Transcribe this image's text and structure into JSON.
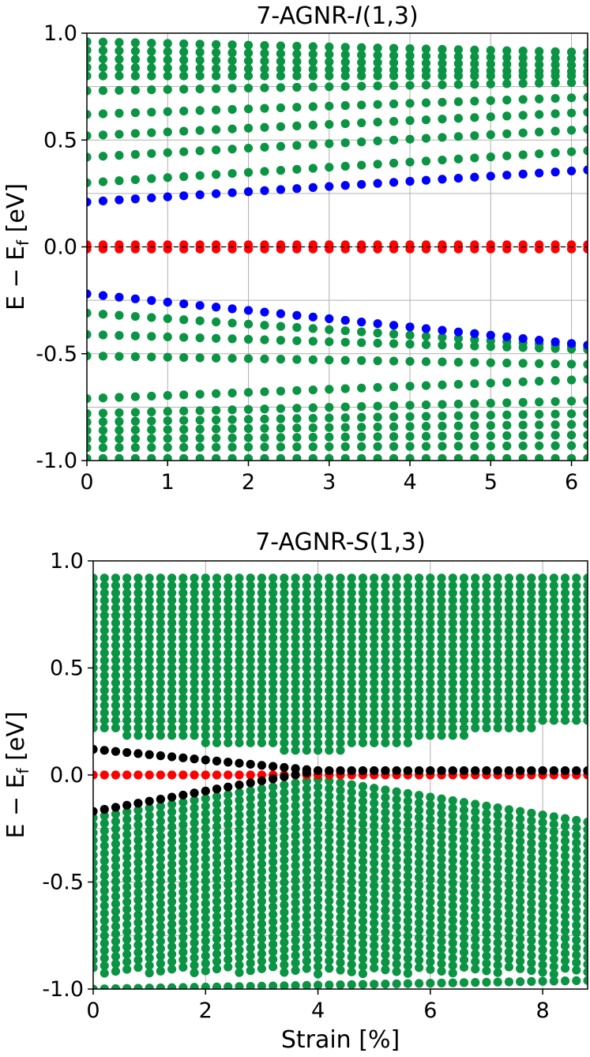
{
  "chart_data": [
    {
      "type": "scatter",
      "title": "7-AGNR-I(1,3)",
      "title_parts": {
        "prefix": "7-AGNR-",
        "italic": "I",
        "suffix": "(1,3)"
      },
      "ylabel": "E − E_f [eV]",
      "ylabel_parts": {
        "main": "E − E",
        "sub": "f",
        "unit": " [eV]"
      },
      "xlabel": "",
      "xlim": [
        0,
        6.2
      ],
      "ylim": [
        -1.0,
        1.0
      ],
      "xticks": [
        0,
        1,
        2,
        3,
        4,
        5,
        6
      ],
      "xtick_labels": [
        "0",
        "1",
        "2",
        "3",
        "4",
        "5",
        "6"
      ],
      "yticks": [
        -1.0,
        -0.5,
        0.0,
        0.5,
        1.0
      ],
      "ytick_labels": [
        "-1.0",
        "-0.5",
        "0.0",
        "0.5",
        "1.0"
      ],
      "grid": true,
      "zero_line": true,
      "strain_points": [
        0,
        0.2,
        0.4,
        0.6,
        0.8,
        1.0,
        1.2,
        1.4,
        1.6,
        1.8,
        2.0,
        2.2,
        2.4,
        2.6,
        2.8,
        3.0,
        3.2,
        3.4,
        3.6,
        3.8,
        4.0,
        4.2,
        4.4,
        4.6,
        4.8,
        5.0,
        5.2,
        5.4,
        5.6,
        5.8,
        6.0,
        6.2
      ],
      "series": [
        {
          "color": "#0b9444",
          "kind": "bulk",
          "bands": [
            {
              "start": -0.99,
              "end": -0.99
            },
            {
              "start": -0.94,
              "end": -0.93
            },
            {
              "start": -0.9,
              "end": -0.88
            },
            {
              "start": -0.86,
              "end": -0.83
            },
            {
              "start": -0.82,
              "end": -0.78
            },
            {
              "start": -0.78,
              "end": -0.72
            },
            {
              "start": -0.71,
              "end": -0.62
            },
            {
              "start": -0.51,
              "end": -0.55
            },
            {
              "start": -0.41,
              "end": -0.48
            },
            {
              "start": -0.31,
              "end": -0.47
            },
            {
              "start": 0.3,
              "end": 0.45
            },
            {
              "start": 0.42,
              "end": 0.55
            },
            {
              "start": 0.52,
              "end": 0.63
            },
            {
              "start": 0.62,
              "end": 0.7
            },
            {
              "start": 0.73,
              "end": 0.77
            },
            {
              "start": 0.8,
              "end": 0.8
            },
            {
              "start": 0.84,
              "end": 0.82
            },
            {
              "start": 0.88,
              "end": 0.85
            },
            {
              "start": 0.92,
              "end": 0.88
            },
            {
              "start": 0.96,
              "end": 0.91
            }
          ]
        },
        {
          "color": "#0000ff",
          "kind": "edge",
          "bands": [
            {
              "start": 0.21,
              "end": 0.36
            },
            {
              "start": -0.22,
              "end": -0.46
            }
          ]
        },
        {
          "color": "#ff0000",
          "kind": "flat",
          "bands": [
            {
              "start": 0.01,
              "end": 0.01
            },
            {
              "start": -0.01,
              "end": -0.01
            }
          ]
        }
      ]
    },
    {
      "type": "scatter",
      "title": "7-AGNR-S(1,3)",
      "title_parts": {
        "prefix": "7-AGNR-",
        "italic": "S",
        "suffix": "(1,3)"
      },
      "ylabel": "E − E_f [eV]",
      "ylabel_parts": {
        "main": "E − E",
        "sub": "f",
        "unit": " [eV]"
      },
      "xlabel": "Strain [%]",
      "xlim": [
        0,
        8.8
      ],
      "ylim": [
        -1.0,
        1.0
      ],
      "xticks": [
        0,
        2,
        4,
        6,
        8
      ],
      "xtick_labels": [
        "0",
        "2",
        "4",
        "6",
        "8"
      ],
      "yticks": [
        -1.0,
        -0.5,
        0.0,
        0.5,
        1.0
      ],
      "ytick_labels": [
        "-1.0",
        "-0.5",
        "0.0",
        "0.5",
        "1.0"
      ],
      "grid": true,
      "zero_line": false,
      "strain_step": 0.2,
      "series": [
        {
          "color": "#0b9444",
          "kind": "conduction_bulk",
          "upper_edge": 0.92,
          "lower_edge_start": 0.2,
          "lower_edge_min": 0.1,
          "lower_edge_end": 0.25,
          "spacing": 0.035
        },
        {
          "color": "#0b9444",
          "kind": "valence_bulk",
          "upper_edge_start": -0.2,
          "upper_edge_max": -0.02,
          "upper_edge_end": -0.22,
          "lower_edge": -0.93,
          "spacing": 0.035
        },
        {
          "color": "#0b9444",
          "kind": "bottom_band",
          "start": -1.0,
          "end": -0.96
        },
        {
          "color": "#000000",
          "kind": "edge_upper",
          "start": 0.12,
          "end": 0.02,
          "merge_at": 4.0
        },
        {
          "color": "#000000",
          "kind": "edge_lower",
          "start": -0.17,
          "end": 0.02,
          "merge_at": 4.0
        },
        {
          "color": "#ff0000",
          "kind": "flat",
          "value": 0.0
        }
      ]
    }
  ]
}
